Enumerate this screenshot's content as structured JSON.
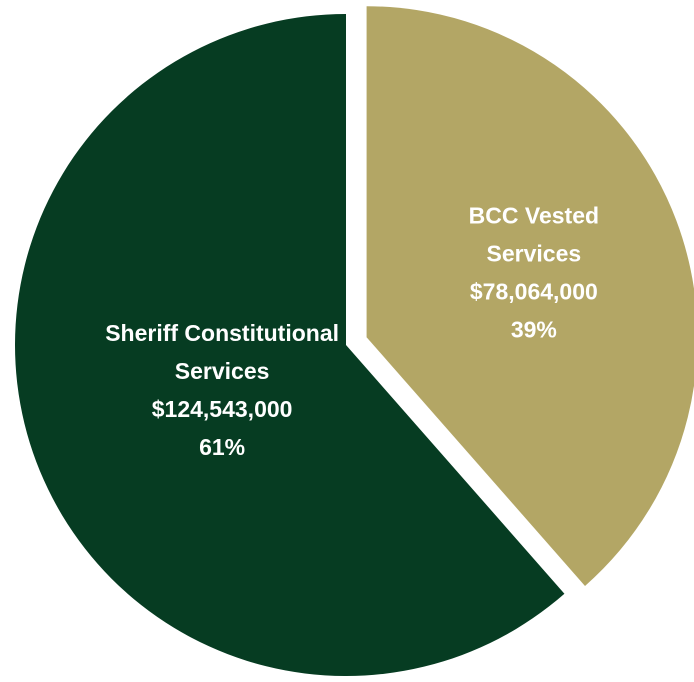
{
  "chart_data": {
    "type": "pie",
    "title": "",
    "slices": [
      {
        "label_lines": [
          "BCC Vested",
          "Services"
        ],
        "value_label": "$78,064,000",
        "percent_label": "39%",
        "value": 78064000,
        "percent": 39,
        "color": "#b3a665",
        "exploded": true
      },
      {
        "label_lines": [
          "Sheriff Constitutional",
          "Services"
        ],
        "value_label": "$124,543,000",
        "percent_label": "61%",
        "value": 124543000,
        "percent": 61,
        "color": "#063c22",
        "exploded": false
      }
    ],
    "start_angle": "12 o'clock",
    "direction": "clockwise",
    "legend": "none"
  }
}
